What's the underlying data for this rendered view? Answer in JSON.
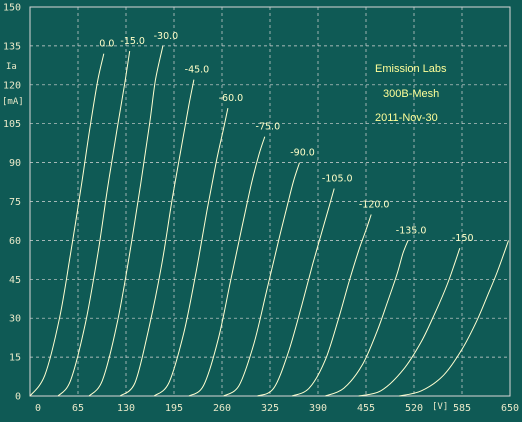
{
  "chart_data": {
    "type": "line",
    "title": "",
    "xlabel": "[V]",
    "ylabel": "Ia [mA]",
    "xlim": [
      0,
      650
    ],
    "ylim": [
      0,
      150
    ],
    "x_ticks": [
      "0",
      "65",
      "130",
      "195",
      "260",
      "325",
      "390",
      "455",
      "520",
      "585",
      "650"
    ],
    "y_ticks": [
      "0",
      "15",
      "30",
      "45",
      "60",
      "75",
      "90",
      "105",
      "120",
      "135",
      "150"
    ],
    "grid": true,
    "grid_style": "dashed",
    "colors": {
      "background": "#0f5a55",
      "curve": "#ffffd0",
      "grid": "#d8d8d8",
      "annotation": "#ffff99"
    },
    "annotations": [
      "Emission Labs",
      "300B-Mesh",
      "2011-Nov-30"
    ],
    "series": [
      {
        "name": "0.0",
        "x": [
          0,
          20,
          40,
          55,
          70,
          82,
          92,
          100
        ],
        "y": [
          0,
          8,
          30,
          55,
          82,
          105,
          122,
          132
        ]
      },
      {
        "name": "-15.0",
        "x": [
          38,
          55,
          75,
          92,
          105,
          118,
          128,
          135
        ],
        "y": [
          0,
          6,
          28,
          55,
          80,
          103,
          120,
          133
        ]
      },
      {
        "name": "-30.0",
        "x": [
          80,
          98,
          118,
          135,
          150,
          162,
          170,
          180
        ],
        "y": [
          0,
          6,
          28,
          55,
          82,
          105,
          122,
          135
        ]
      },
      {
        "name": "-45.0",
        "x": [
          122,
          142,
          160,
          178,
          192,
          205,
          215,
          222
        ],
        "y": [
          0,
          5,
          25,
          50,
          75,
          96,
          112,
          122
        ]
      },
      {
        "name": "-60.0",
        "x": [
          168,
          188,
          208,
          225,
          240,
          252,
          262,
          268
        ],
        "y": [
          0,
          5,
          24,
          48,
          72,
          90,
          103,
          111
        ]
      },
      {
        "name": "-75.0",
        "x": [
          215,
          235,
          255,
          272,
          287,
          300,
          310,
          318
        ],
        "y": [
          0,
          4,
          22,
          45,
          65,
          82,
          93,
          100
        ]
      },
      {
        "name": "-90.0",
        "x": [
          262,
          283,
          303,
          320,
          335,
          348,
          357,
          365
        ],
        "y": [
          0,
          4,
          20,
          40,
          58,
          73,
          83,
          90
        ]
      },
      {
        "name": "-105.0",
        "x": [
          308,
          330,
          350,
          368,
          383,
          396,
          405,
          412
        ],
        "y": [
          0,
          3,
          17,
          35,
          51,
          64,
          73,
          80
        ]
      },
      {
        "name": "-120.0",
        "x": [
          355,
          378,
          400,
          418,
          432,
          445,
          455,
          462
        ],
        "y": [
          0,
          3,
          14,
          30,
          44,
          56,
          64,
          70
        ]
      },
      {
        "name": "-135.0",
        "x": [
          400,
          425,
          450,
          470,
          485,
          497,
          505,
          512
        ],
        "y": [
          0,
          3,
          12,
          25,
          37,
          47,
          55,
          60
        ]
      },
      {
        "name": "-150",
        "x": [
          445,
          475,
          505,
          530,
          550,
          565,
          575,
          582
        ],
        "y": [
          0,
          2,
          10,
          21,
          33,
          43,
          51,
          57
        ]
      },
      {
        "name": "",
        "x": [
          500,
          530,
          560,
          585,
          605,
          620,
          633,
          648
        ],
        "y": [
          0,
          2,
          8,
          18,
          29,
          39,
          48,
          60
        ]
      }
    ]
  }
}
